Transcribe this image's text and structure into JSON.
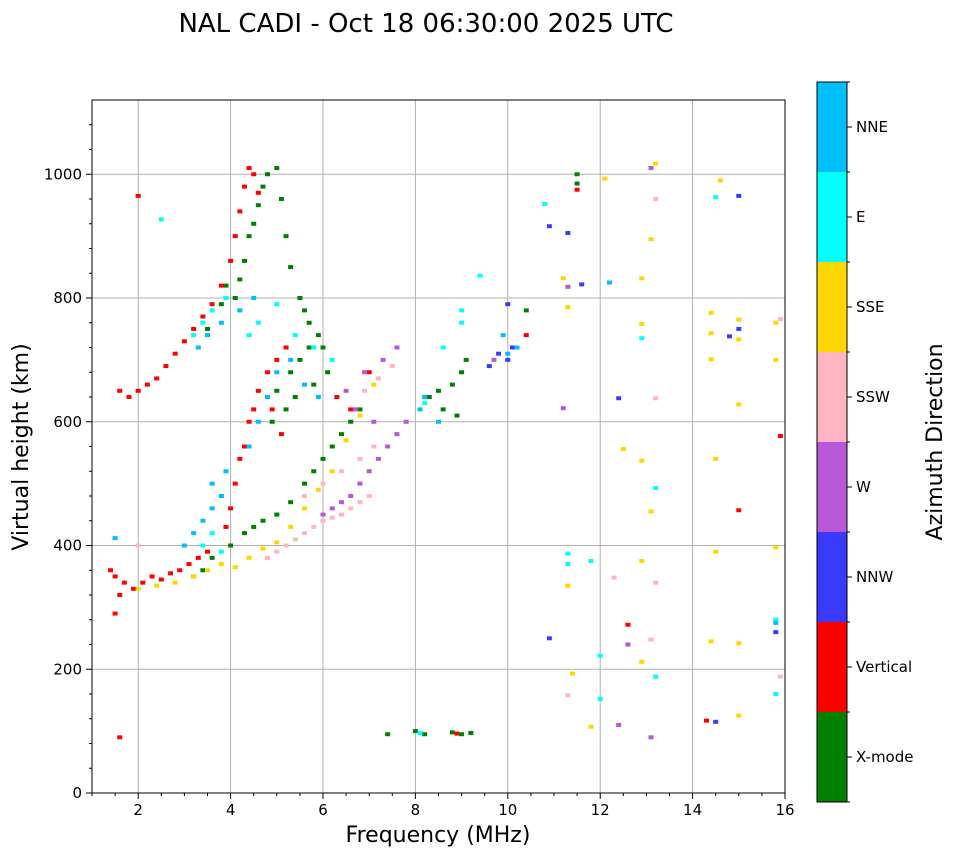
{
  "chart_data": {
    "type": "scatter",
    "title": "NAL CADI - Oct 18 06:30:00 2025 UTC",
    "xlabel": "Frequency (MHz)",
    "ylabel": "Virtual height (km)",
    "xlim": [
      1,
      16
    ],
    "ylim": [
      0,
      1120
    ],
    "x_ticks": [
      2,
      4,
      6,
      8,
      10,
      12,
      14,
      16
    ],
    "y_ticks": [
      0,
      200,
      400,
      600,
      800,
      1000
    ],
    "grid": true,
    "colorbar": {
      "title": "Azimuth Direction",
      "categories": [
        {
          "label": "X-mode",
          "color": "#008000"
        },
        {
          "label": "Vertical",
          "color": "#ff0000"
        },
        {
          "label": "NNW",
          "color": "#3a3aff"
        },
        {
          "label": "W",
          "color": "#b857d8"
        },
        {
          "label": "SSW",
          "color": "#ffb6c1"
        },
        {
          "label": "SSE",
          "color": "#ffd700"
        },
        {
          "label": "E",
          "color": "#00ffff"
        },
        {
          "label": "NNE",
          "color": "#00bfff"
        }
      ]
    },
    "series": [
      {
        "name": "X-mode",
        "points": [
          [
            4.1,
            800
          ],
          [
            4.2,
            830
          ],
          [
            4.3,
            860
          ],
          [
            4.4,
            900
          ],
          [
            4.5,
            920
          ],
          [
            4.6,
            950
          ],
          [
            4.7,
            980
          ],
          [
            4.8,
            1000
          ],
          [
            5.0,
            1010
          ],
          [
            5.1,
            960
          ],
          [
            5.2,
            900
          ],
          [
            5.3,
            850
          ],
          [
            5.5,
            800
          ],
          [
            5.6,
            780
          ],
          [
            5.7,
            760
          ],
          [
            5.9,
            740
          ],
          [
            6.0,
            720
          ],
          [
            4.0,
            400
          ],
          [
            4.3,
            420
          ],
          [
            4.5,
            430
          ],
          [
            4.7,
            440
          ],
          [
            5.0,
            450
          ],
          [
            5.3,
            470
          ],
          [
            5.6,
            500
          ],
          [
            5.8,
            520
          ],
          [
            6.0,
            540
          ],
          [
            6.2,
            560
          ],
          [
            6.4,
            580
          ],
          [
            6.6,
            600
          ],
          [
            6.8,
            620
          ],
          [
            5.0,
            650
          ],
          [
            5.3,
            680
          ],
          [
            5.5,
            700
          ],
          [
            5.7,
            720
          ],
          [
            4.9,
            600
          ],
          [
            5.2,
            620
          ],
          [
            5.4,
            640
          ],
          [
            5.8,
            660
          ],
          [
            6.1,
            680
          ],
          [
            3.6,
            380
          ],
          [
            3.4,
            360
          ],
          [
            3.2,
            350
          ],
          [
            3.5,
            750
          ],
          [
            3.8,
            790
          ],
          [
            3.9,
            820
          ],
          [
            7.4,
            95
          ],
          [
            8.0,
            100
          ],
          [
            8.2,
            95
          ],
          [
            8.8,
            98
          ],
          [
            9.0,
            95
          ],
          [
            9.2,
            97
          ],
          [
            8.3,
            640
          ],
          [
            8.5,
            650
          ],
          [
            8.8,
            660
          ],
          [
            9.0,
            680
          ],
          [
            9.1,
            700
          ],
          [
            8.6,
            620
          ],
          [
            8.9,
            610
          ],
          [
            11.5,
            985
          ],
          [
            11.5,
            1000
          ],
          [
            10.4,
            780
          ]
        ]
      },
      {
        "name": "Vertical",
        "points": [
          [
            1.6,
            650
          ],
          [
            1.8,
            640
          ],
          [
            2.0,
            650
          ],
          [
            2.2,
            660
          ],
          [
            2.4,
            670
          ],
          [
            2.6,
            690
          ],
          [
            2.8,
            710
          ],
          [
            3.0,
            730
          ],
          [
            3.2,
            750
          ],
          [
            3.4,
            770
          ],
          [
            3.6,
            790
          ],
          [
            3.8,
            820
          ],
          [
            4.0,
            860
          ],
          [
            4.1,
            900
          ],
          [
            4.2,
            940
          ],
          [
            4.3,
            980
          ],
          [
            4.4,
            1010
          ],
          [
            4.5,
            1000
          ],
          [
            4.6,
            970
          ],
          [
            1.5,
            350
          ],
          [
            1.7,
            340
          ],
          [
            1.9,
            330
          ],
          [
            2.1,
            340
          ],
          [
            2.3,
            350
          ],
          [
            2.5,
            345
          ],
          [
            2.7,
            355
          ],
          [
            2.9,
            360
          ],
          [
            3.1,
            370
          ],
          [
            3.3,
            380
          ],
          [
            3.5,
            390
          ],
          [
            1.4,
            360
          ],
          [
            1.6,
            320
          ],
          [
            1.5,
            290
          ],
          [
            4.0,
            460
          ],
          [
            4.1,
            500
          ],
          [
            4.2,
            540
          ],
          [
            4.3,
            560
          ],
          [
            4.4,
            600
          ],
          [
            4.5,
            620
          ],
          [
            4.6,
            650
          ],
          [
            4.8,
            680
          ],
          [
            5.0,
            700
          ],
          [
            5.2,
            720
          ],
          [
            4.9,
            620
          ],
          [
            5.1,
            580
          ],
          [
            3.9,
            430
          ],
          [
            2.0,
            965
          ],
          [
            10.4,
            740
          ],
          [
            11.5,
            975
          ],
          [
            15.9,
            577
          ],
          [
            15.0,
            457
          ],
          [
            14.3,
            117
          ],
          [
            12.6,
            272
          ],
          [
            8.9,
            96
          ],
          [
            1.6,
            90
          ],
          [
            6.3,
            640
          ],
          [
            6.6,
            620
          ],
          [
            7.0,
            680
          ]
        ]
      },
      {
        "name": "NNW",
        "points": [
          [
            10.0,
            700
          ],
          [
            10.1,
            720
          ],
          [
            9.8,
            710
          ],
          [
            9.6,
            690
          ],
          [
            10.9,
            916
          ],
          [
            11.3,
            905
          ],
          [
            15.0,
            965
          ],
          [
            15.0,
            750
          ],
          [
            14.8,
            738
          ],
          [
            15.8,
            260
          ],
          [
            12.4,
            638
          ],
          [
            10.9,
            250
          ],
          [
            14.5,
            115
          ],
          [
            10.0,
            790
          ],
          [
            11.6,
            822
          ]
        ]
      },
      {
        "name": "W",
        "points": [
          [
            6.4,
            470
          ],
          [
            6.6,
            480
          ],
          [
            6.8,
            500
          ],
          [
            7.0,
            520
          ],
          [
            7.2,
            540
          ],
          [
            7.4,
            560
          ],
          [
            7.6,
            580
          ],
          [
            7.8,
            600
          ],
          [
            6.2,
            460
          ],
          [
            6.0,
            450
          ],
          [
            6.5,
            650
          ],
          [
            6.9,
            680
          ],
          [
            7.3,
            700
          ],
          [
            7.6,
            720
          ],
          [
            9.7,
            700
          ],
          [
            12.6,
            240
          ],
          [
            13.1,
            1010
          ],
          [
            11.2,
            622
          ],
          [
            11.3,
            818
          ],
          [
            12.4,
            110
          ],
          [
            13.1,
            90
          ],
          [
            6.7,
            620
          ],
          [
            7.1,
            600
          ]
        ]
      },
      {
        "name": "SSW",
        "points": [
          [
            4.8,
            380
          ],
          [
            5.0,
            390
          ],
          [
            5.2,
            400
          ],
          [
            5.4,
            410
          ],
          [
            5.6,
            420
          ],
          [
            5.8,
            430
          ],
          [
            6.0,
            440
          ],
          [
            6.2,
            445
          ],
          [
            6.4,
            450
          ],
          [
            6.6,
            460
          ],
          [
            6.8,
            470
          ],
          [
            7.0,
            480
          ],
          [
            5.6,
            480
          ],
          [
            6.0,
            500
          ],
          [
            6.4,
            520
          ],
          [
            6.8,
            540
          ],
          [
            7.1,
            560
          ],
          [
            6.9,
            650
          ],
          [
            7.2,
            670
          ],
          [
            7.5,
            690
          ],
          [
            11.3,
            158
          ],
          [
            12.3,
            348
          ],
          [
            13.2,
            960
          ],
          [
            13.2,
            638
          ],
          [
            15.9,
            188
          ],
          [
            15.9,
            766
          ],
          [
            2.0,
            400
          ],
          [
            13.1,
            248
          ],
          [
            13.2,
            340
          ]
        ]
      },
      {
        "name": "SSE",
        "points": [
          [
            2.0,
            330
          ],
          [
            2.4,
            335
          ],
          [
            2.8,
            340
          ],
          [
            3.2,
            350
          ],
          [
            3.5,
            360
          ],
          [
            3.8,
            370
          ],
          [
            4.1,
            365
          ],
          [
            4.4,
            380
          ],
          [
            4.7,
            395
          ],
          [
            5.0,
            405
          ],
          [
            5.3,
            430
          ],
          [
            5.6,
            460
          ],
          [
            5.9,
            490
          ],
          [
            6.2,
            520
          ],
          [
            6.5,
            570
          ],
          [
            6.8,
            610
          ],
          [
            7.1,
            660
          ],
          [
            12.1,
            993
          ],
          [
            13.2,
            1017
          ],
          [
            13.1,
            895
          ],
          [
            12.9,
            832
          ],
          [
            12.9,
            758
          ],
          [
            12.9,
            537
          ],
          [
            13.1,
            455
          ],
          [
            12.9,
            375
          ],
          [
            14.6,
            990
          ],
          [
            14.4,
            776
          ],
          [
            14.4,
            743
          ],
          [
            14.4,
            701
          ],
          [
            14.5,
            540
          ],
          [
            15.0,
            765
          ],
          [
            15.0,
            733
          ],
          [
            15.0,
            628
          ],
          [
            14.5,
            390
          ],
          [
            15.0,
            242
          ],
          [
            15.0,
            125
          ],
          [
            14.4,
            245
          ],
          [
            12.9,
            212
          ],
          [
            11.8,
            107
          ],
          [
            11.4,
            193
          ],
          [
            11.3,
            335
          ],
          [
            11.3,
            785
          ],
          [
            11.2,
            832
          ],
          [
            15.8,
            700
          ],
          [
            15.8,
            760
          ],
          [
            15.8,
            397
          ],
          [
            12.5,
            556
          ]
        ]
      },
      {
        "name": "E",
        "points": [
          [
            3.2,
            740
          ],
          [
            3.4,
            760
          ],
          [
            3.6,
            780
          ],
          [
            3.9,
            800
          ],
          [
            4.2,
            780
          ],
          [
            4.4,
            740
          ],
          [
            4.6,
            760
          ],
          [
            5.0,
            790
          ],
          [
            5.4,
            740
          ],
          [
            5.8,
            720
          ],
          [
            6.2,
            700
          ],
          [
            2.5,
            927
          ],
          [
            3.4,
            400
          ],
          [
            3.6,
            420
          ],
          [
            3.8,
            390
          ],
          [
            8.2,
            630
          ],
          [
            8.6,
            720
          ],
          [
            9.0,
            760
          ],
          [
            9.0,
            780
          ],
          [
            12.9,
            735
          ],
          [
            13.2,
            493
          ],
          [
            13.2,
            188
          ],
          [
            12.0,
            222
          ],
          [
            12.0,
            152
          ],
          [
            11.8,
            375
          ],
          [
            11.3,
            387
          ],
          [
            11.3,
            370
          ],
          [
            14.5,
            963
          ],
          [
            15.8,
            280
          ],
          [
            15.8,
            160
          ],
          [
            8.1,
            97
          ],
          [
            10.8,
            952
          ],
          [
            9.4,
            836
          ]
        ]
      },
      {
        "name": "NNE",
        "points": [
          [
            3.0,
            400
          ],
          [
            3.2,
            420
          ],
          [
            3.4,
            440
          ],
          [
            3.6,
            460
          ],
          [
            3.8,
            480
          ],
          [
            3.6,
            500
          ],
          [
            3.9,
            520
          ],
          [
            4.4,
            560
          ],
          [
            4.6,
            600
          ],
          [
            4.8,
            640
          ],
          [
            5.0,
            680
          ],
          [
            5.3,
            700
          ],
          [
            5.6,
            660
          ],
          [
            5.9,
            640
          ],
          [
            3.3,
            720
          ],
          [
            3.5,
            740
          ],
          [
            3.8,
            760
          ],
          [
            4.2,
            780
          ],
          [
            4.5,
            800
          ],
          [
            8.2,
            640
          ],
          [
            8.5,
            600
          ],
          [
            8.1,
            620
          ],
          [
            10.0,
            710
          ],
          [
            10.2,
            720
          ],
          [
            9.9,
            740
          ],
          [
            1.5,
            412
          ],
          [
            15.8,
            275
          ],
          [
            12.2,
            825
          ]
        ]
      }
    ]
  }
}
